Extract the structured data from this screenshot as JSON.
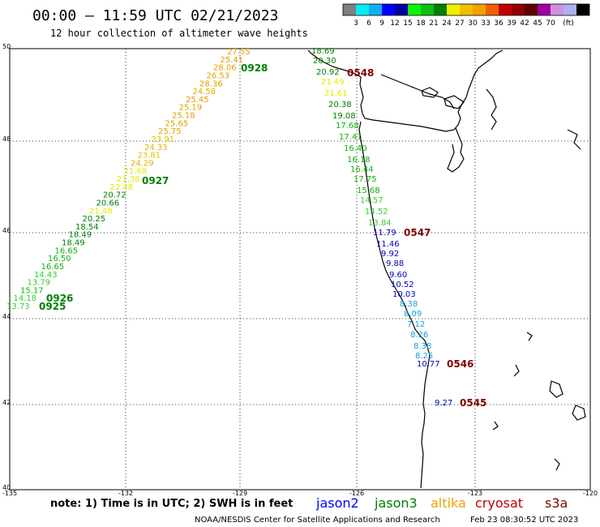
{
  "header": {
    "title": "00:00 – 11:59 UTC 02/21/2023",
    "subtitle": "12 hour collection of altimeter wave heights"
  },
  "legend": {
    "unit": "(ft)",
    "colors": [
      "#808080",
      "#00f0f0",
      "#10b0f0",
      "#0000ff",
      "#0000a0",
      "#10f010",
      "#10c010",
      "#008000",
      "#f0f000",
      "#f0c000",
      "#f0a000",
      "#f06000",
      "#c00000",
      "#900000",
      "#600000",
      "#a000a0",
      "#d090e0",
      "#b0b0f0",
      "#000000"
    ],
    "labels": [
      "3",
      "6",
      "9",
      "12",
      "15",
      "18",
      "21",
      "24",
      "27",
      "30",
      "33",
      "36",
      "39",
      "42",
      "45",
      "70"
    ]
  },
  "axes": {
    "lat_labels": [
      "50",
      "48",
      "46",
      "44",
      "42",
      "40"
    ],
    "lon_labels": [
      "-135",
      "-132",
      "-129",
      "-126",
      "-123",
      "-120"
    ]
  },
  "tracks": {
    "left": [
      {
        "t": "27.55",
        "c": "#e0a000"
      },
      {
        "t": "25.41",
        "c": "#e0a000"
      },
      {
        "t": "28.06",
        "c": "#e0a000"
      },
      {
        "t": "26.53",
        "c": "#e0a000"
      },
      {
        "t": "28.36",
        "c": "#e0a000"
      },
      {
        "t": "24.58",
        "c": "#e0b000"
      },
      {
        "t": "25.45",
        "c": "#e0a000"
      },
      {
        "t": "25.19",
        "c": "#e0a000"
      },
      {
        "t": "25.18",
        "c": "#e0a000"
      },
      {
        "t": "25.65",
        "c": "#e0a000"
      },
      {
        "t": "25.75",
        "c": "#e0a000"
      },
      {
        "t": "23.91",
        "c": "#e0c000"
      },
      {
        "t": "24.33",
        "c": "#e0b000"
      },
      {
        "t": "23.81",
        "c": "#e0c000"
      },
      {
        "t": "24.29",
        "c": "#e0b000"
      },
      {
        "t": "21.68",
        "c": "#e8e800"
      },
      {
        "t": "21.38",
        "c": "#e8e800"
      },
      {
        "t": "22.48",
        "c": "#e8e800"
      },
      {
        "t": "20.72",
        "c": "#008000"
      },
      {
        "t": "20.66",
        "c": "#008000"
      },
      {
        "t": "21.48",
        "c": "#e8e800"
      },
      {
        "t": "20.25",
        "c": "#008000"
      },
      {
        "t": "18.54",
        "c": "#008000"
      },
      {
        "t": "18.49",
        "c": "#008000"
      },
      {
        "t": "18.49",
        "c": "#008000"
      },
      {
        "t": "16.65",
        "c": "#10b010"
      },
      {
        "t": "16.50",
        "c": "#10b010"
      },
      {
        "t": "16.65",
        "c": "#10b010"
      },
      {
        "t": "14.43",
        "c": "#30d030"
      },
      {
        "t": "13.79",
        "c": "#30d030"
      },
      {
        "t": "15.17",
        "c": "#10b010"
      },
      {
        "t": "14.18",
        "c": "#30d030"
      },
      {
        "t": "13.73",
        "c": "#30d030"
      }
    ],
    "right": [
      {
        "t": "18.69",
        "c": "#008000"
      },
      {
        "t": "20.30",
        "c": "#008000"
      },
      {
        "t": "20.92",
        "c": "#008000"
      },
      {
        "t": "21.49",
        "c": "#e8e800"
      },
      {
        "t": "21.61",
        "c": "#e8e800"
      },
      {
        "t": "20.38",
        "c": "#008000"
      },
      {
        "t": "19.08",
        "c": "#008000"
      },
      {
        "t": "17.68",
        "c": "#10b010"
      },
      {
        "t": "17.41",
        "c": "#10b010"
      },
      {
        "t": "16.40",
        "c": "#10b010"
      },
      {
        "t": "16.18",
        "c": "#10b010"
      },
      {
        "t": "16.44",
        "c": "#10b010"
      },
      {
        "t": "17.75",
        "c": "#10b010"
      },
      {
        "t": "15.68",
        "c": "#10b010"
      },
      {
        "t": "14.57",
        "c": "#30d030"
      },
      {
        "t": "14.52",
        "c": "#30d030"
      },
      {
        "t": "13.84",
        "c": "#30d030"
      },
      {
        "t": "11.79",
        "c": "#0000c0"
      },
      {
        "t": "11.46",
        "c": "#0000c0"
      },
      {
        "t": "9.92",
        "c": "#0000c0"
      },
      {
        "t": "9.88",
        "c": "#0000c0"
      },
      {
        "t": "9.60",
        "c": "#0000c0"
      },
      {
        "t": "10.52",
        "c": "#0000c0"
      },
      {
        "t": "10.03",
        "c": "#0000c0"
      },
      {
        "t": "8.38",
        "c": "#10a0e0"
      },
      {
        "t": "8.09",
        "c": "#10a0e0"
      },
      {
        "t": "7.12",
        "c": "#10a0e0"
      },
      {
        "t": "8.26",
        "c": "#10a0e0"
      },
      {
        "t": "8.38",
        "c": "#10a0e0"
      },
      {
        "t": "8.25",
        "c": "#10a0e0"
      },
      {
        "t": "10.77",
        "c": "#0000c0"
      },
      {
        "t": "9.27",
        "c": "#0000c0"
      }
    ]
  },
  "times": [
    {
      "t": "0928",
      "c": "#008000"
    },
    {
      "t": "0927",
      "c": "#008000"
    },
    {
      "t": "0926",
      "c": "#008000"
    },
    {
      "t": "0925",
      "c": "#008000"
    },
    {
      "t": "0548",
      "c": "#800000"
    },
    {
      "t": "0547",
      "c": "#800000"
    },
    {
      "t": "0546",
      "c": "#800000"
    },
    {
      "t": "0545",
      "c": "#800000"
    }
  ],
  "footer": {
    "note": "note: 1) Time is in UTC; 2) SWH is in feet",
    "missions": [
      {
        "t": "jason2",
        "c": "#0000ff"
      },
      {
        "t": "jason3",
        "c": "#008000"
      },
      {
        "t": "altika",
        "c": "#f0a000"
      },
      {
        "t": "cryosat",
        "c": "#c00000"
      },
      {
        "t": "s3a",
        "c": "#800000"
      }
    ],
    "credit": "NOAA/NESDIS Center for Satellite Applications and Research",
    "timestamp": "Feb 23 08:30:52 UTC 2023"
  }
}
